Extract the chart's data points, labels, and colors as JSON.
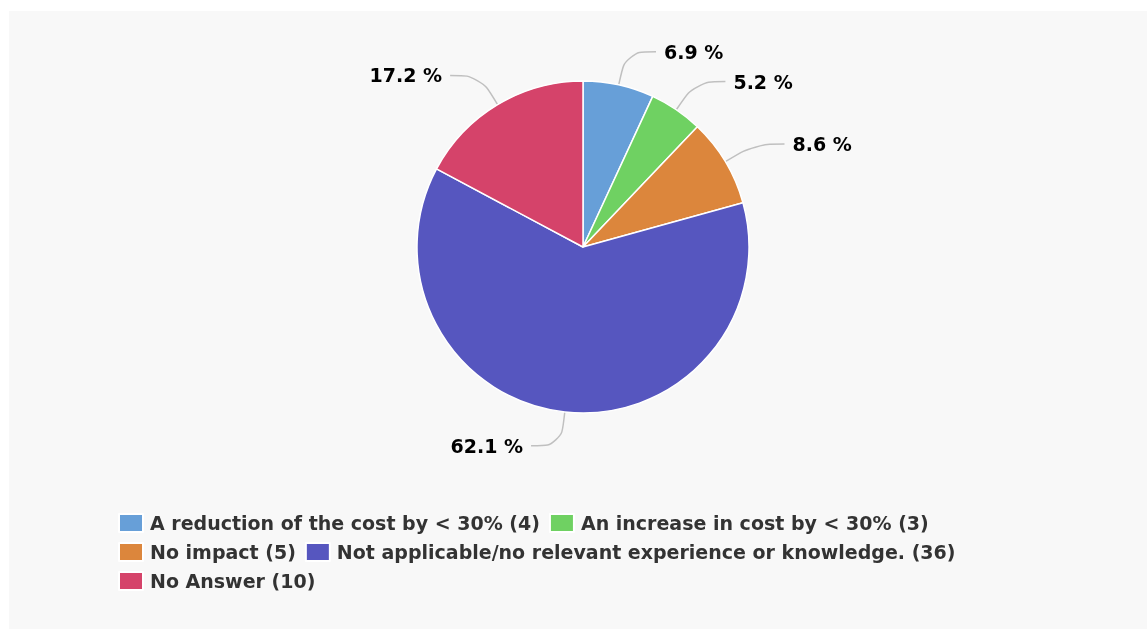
{
  "chart_data": {
    "type": "pie",
    "categories": [
      "A reduction of the cost by < 30% (4)",
      "An increase in cost by < 30% (3)",
      "No impact (5)",
      "Not applicable/no relevant experience or knowledge. (36)",
      "No Answer (10)"
    ],
    "values": [
      6.9,
      5.2,
      8.6,
      62.1,
      17.2
    ],
    "colors": [
      "#679fd8",
      "#6fd162",
      "#dc863c",
      "#5656bf",
      "#d5436a"
    ],
    "value_labels": [
      "6.9 %",
      "5.2 %",
      "8.6 %",
      "62.1 %",
      "17.2 %"
    ],
    "legend": "bottom"
  }
}
